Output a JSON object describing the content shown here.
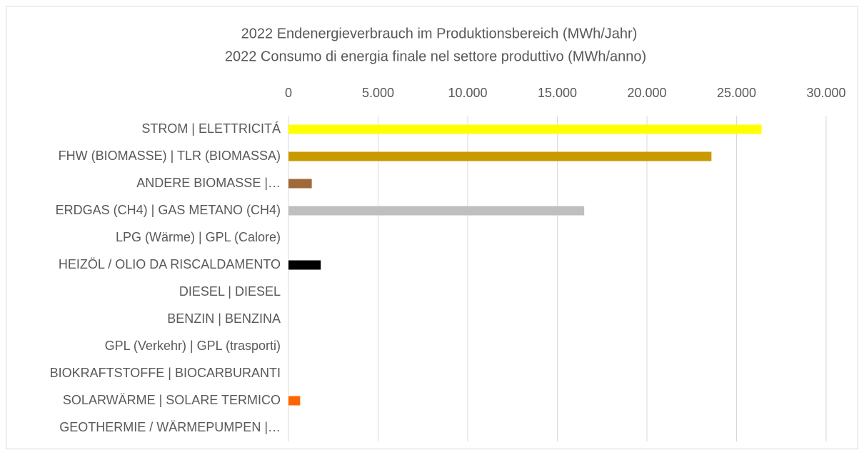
{
  "chart_data": {
    "type": "bar",
    "orientation": "horizontal",
    "title": [
      "2022 Endenergieverbrauch im Produktionsbereich (MWh/Jahr)",
      "2022 Consumo di energia finale nel settore produttivo (MWh/anno)"
    ],
    "categories": [
      "STROM | ELETTRICITÁ",
      "FHW (BIOMASSE) | TLR (BIOMASSA)",
      "ANDERE BIOMASSE |…",
      "ERDGAS (CH4) | GAS METANO (CH4)",
      "LPG (Wärme) | GPL (Calore)",
      "HEIZÖL / OLIO DA RISCALDAMENTO",
      "DIESEL | DIESEL",
      "BENZIN | BENZINA",
      "GPL (Verkehr) | GPL (trasporti)",
      "BIOKRAFTSTOFFE | BIOCARBURANTI",
      "SOLARWÄRME | SOLARE TERMICO",
      "GEOTHERMIE / WÄRMEPUMPEN |…"
    ],
    "values": [
      26400,
      23600,
      1300,
      16500,
      0,
      1800,
      0,
      0,
      0,
      0,
      650,
      0
    ],
    "colors": [
      "#ffff00",
      "#c99a00",
      "#a0693a",
      "#bfbfbf",
      "#7f7f7f",
      "#000000",
      "#404040",
      "#808080",
      "#a5a5a5",
      "#70ad47",
      "#ff6600",
      "#4472c4"
    ],
    "xlim": [
      0,
      30000
    ],
    "xticks": [
      0,
      {
        "value": 5000,
        "label": "5.000"
      },
      {
        "value": 10000,
        "label": "10.000"
      },
      {
        "value": 15000,
        "label": "15.000"
      },
      {
        "value": 20000,
        "label": "20.000"
      },
      {
        "value": 25000,
        "label": "25.000"
      },
      {
        "value": 30000,
        "label": "30.000"
      }
    ],
    "grid": true
  }
}
